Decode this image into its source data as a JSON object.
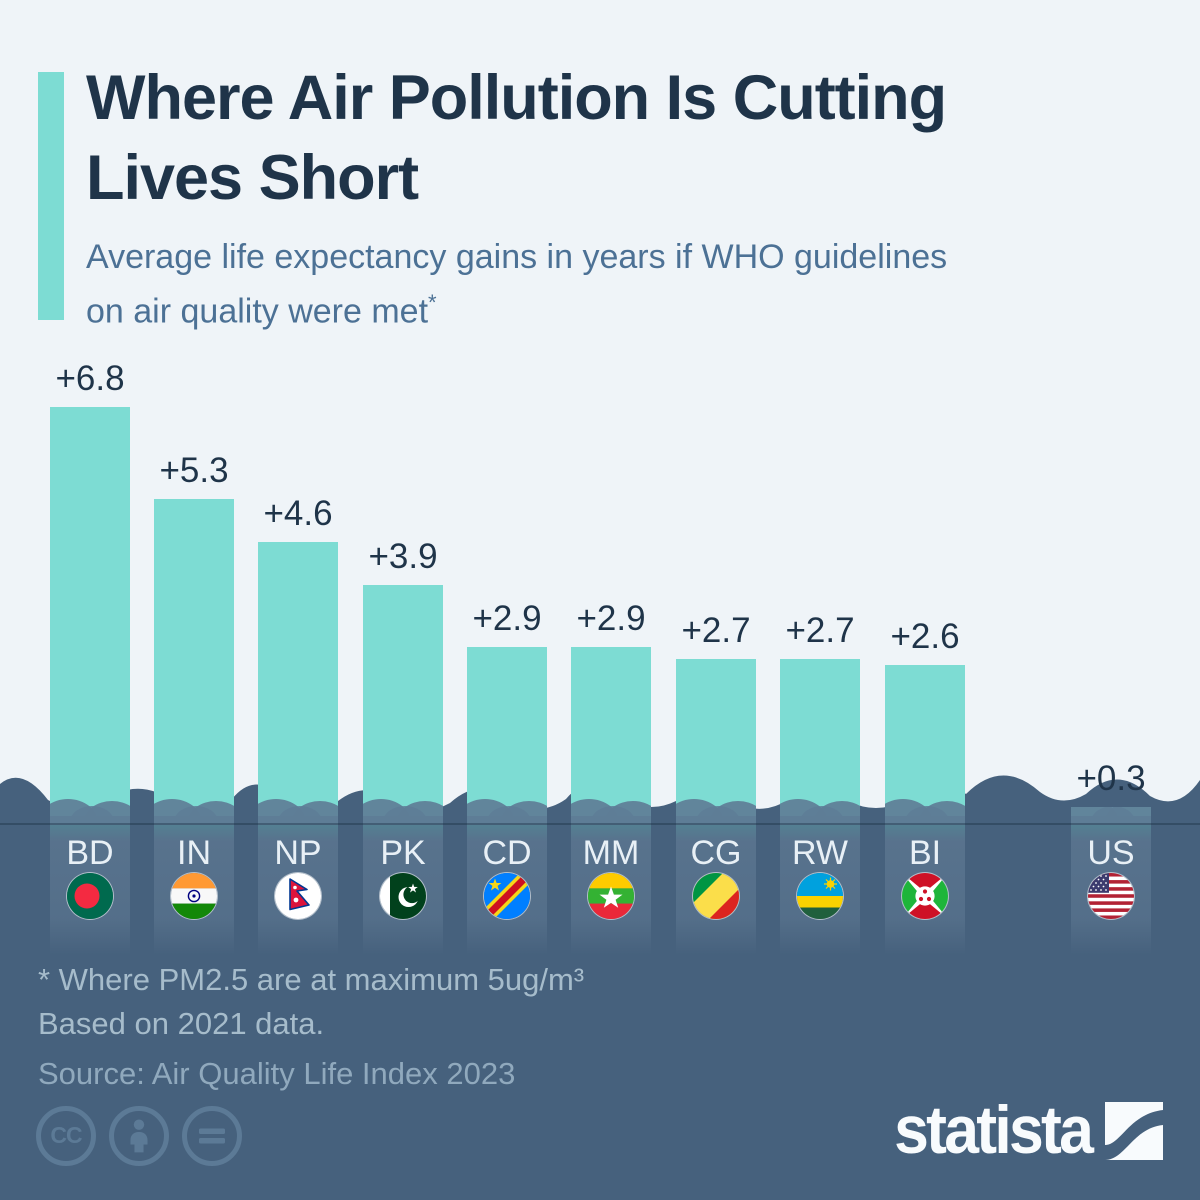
{
  "header": {
    "title_line1": "Where Air Pollution Is Cutting",
    "title_line2": "Lives Short",
    "subtitle_line1": "Average life expectancy gains in years if WHO guidelines",
    "subtitle_line2": "on air quality were met",
    "footnote_marker": "*"
  },
  "chart_data": {
    "type": "bar",
    "title": "Where Air Pollution Is Cutting Lives Short",
    "subtitle": "Average life expectancy gains in years if WHO guidelines on air quality were met*",
    "ylabel": "Life expectancy gain (years)",
    "ylim": [
      0,
      7
    ],
    "grid": false,
    "legend_position": "none",
    "categories": [
      "BD",
      "IN",
      "NP",
      "PK",
      "CD",
      "MM",
      "CG",
      "RW",
      "BI",
      "US"
    ],
    "countries": [
      "Bangladesh",
      "India",
      "Nepal",
      "Pakistan",
      "DR Congo",
      "Myanmar",
      "Republic of the Congo",
      "Rwanda",
      "Burundi",
      "United States"
    ],
    "values": [
      6.8,
      5.3,
      4.6,
      3.9,
      2.9,
      2.9,
      2.7,
      2.7,
      2.6,
      0.3
    ],
    "labels": [
      "+6.8",
      "+5.3",
      "+4.6",
      "+3.9",
      "+2.9",
      "+2.9",
      "+2.7",
      "+2.7",
      "+2.6",
      "+0.3"
    ],
    "bar_color": "#7DDCD3"
  },
  "footer": {
    "note_line1": "* Where PM2.5 are at maximum 5ug/m³",
    "note_line2": "Based on 2021 data.",
    "source": "Source: Air Quality Life Index 2023"
  },
  "branding": {
    "logo_text": "statista"
  },
  "license": {
    "icons": [
      "cc-icon",
      "attribution-icon",
      "no-derivatives-icon"
    ],
    "cc_label": "CC"
  },
  "colors": {
    "background": "#EFF4F8",
    "accent_teal": "#7DDCD3",
    "water_dark": "#46617D",
    "wave_muted": "#5E7D96",
    "title_navy": "#1F3449",
    "subtitle_blue": "#4C7195",
    "note_gray": "#A6BCCB"
  }
}
